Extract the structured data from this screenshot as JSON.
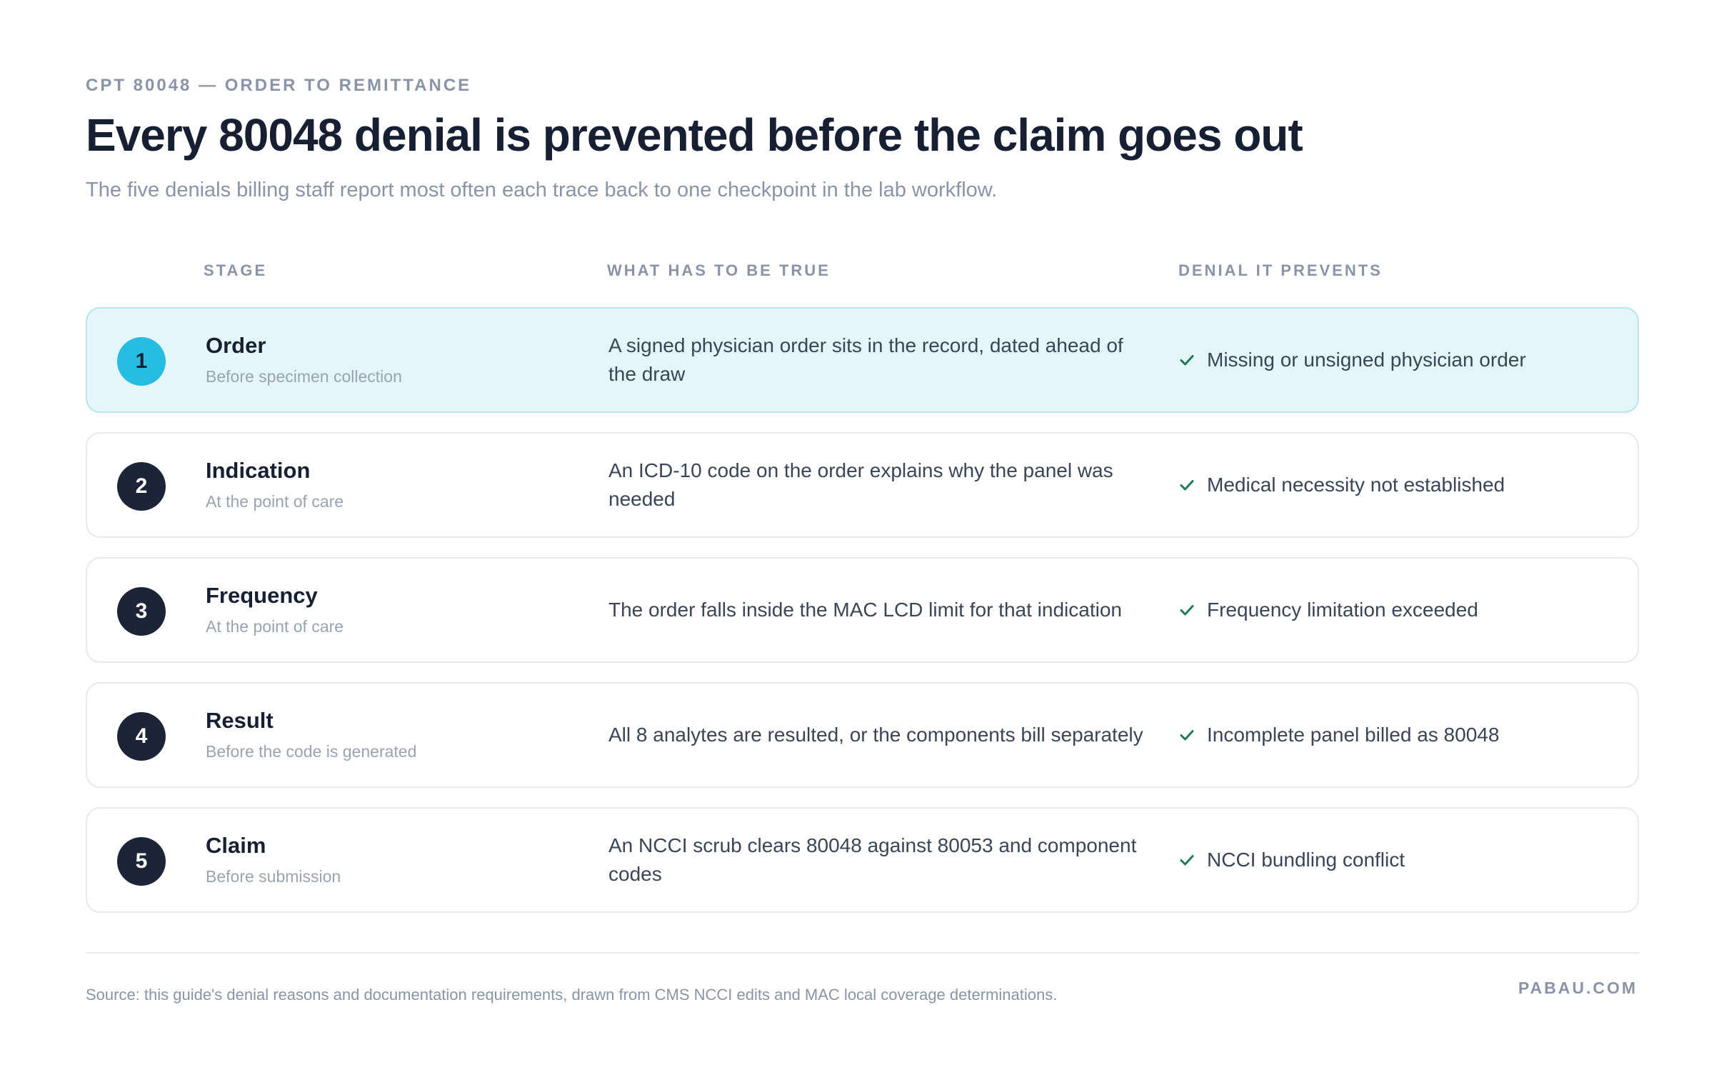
{
  "header": {
    "eyebrow": "CPT 80048 — ORDER TO REMITTANCE",
    "title": "Every 80048 denial is prevented before the claim goes out",
    "subtitle": "The five denials billing staff report most often each trace back to one checkpoint in the lab workflow."
  },
  "columns": {
    "stage": "STAGE",
    "what": "WHAT HAS TO BE TRUE",
    "denial": "DENIAL IT PREVENTS"
  },
  "rows": [
    {
      "num": "1",
      "stage": "Order",
      "sub": "Before specimen collection",
      "what": "A signed physician order sits in the record, dated ahead of the draw",
      "denial": "Missing or unsigned physician order",
      "highlight": true
    },
    {
      "num": "2",
      "stage": "Indication",
      "sub": "At the point of care",
      "what": "An ICD-10 code on the order explains why the panel was needed",
      "denial": "Medical necessity not established",
      "highlight": false
    },
    {
      "num": "3",
      "stage": "Frequency",
      "sub": "At the point of care",
      "what": "The order falls inside the MAC LCD limit for that indication",
      "denial": "Frequency limitation exceeded",
      "highlight": false
    },
    {
      "num": "4",
      "stage": "Result",
      "sub": "Before the code is generated",
      "what": "All 8 analytes are resulted, or the components bill separately",
      "denial": "Incomplete panel billed as 80048",
      "highlight": false
    },
    {
      "num": "5",
      "stage": "Claim",
      "sub": "Before submission",
      "what": "An NCCI scrub clears 80048 against 80053 and component codes",
      "denial": "NCCI bundling conflict",
      "highlight": false
    }
  ],
  "footer": {
    "source": "Source: this guide's denial reasons and documentation requirements, drawn from CMS NCCI edits and MAC local coverage determinations.",
    "brand": "PABAU.COM"
  },
  "colors": {
    "highlight_bg": "#e5f6fa",
    "highlight_badge": "#27bde3",
    "badge_dark": "#1c2538",
    "check": "#1f7a5a"
  },
  "icons": {
    "check": "check-icon"
  }
}
